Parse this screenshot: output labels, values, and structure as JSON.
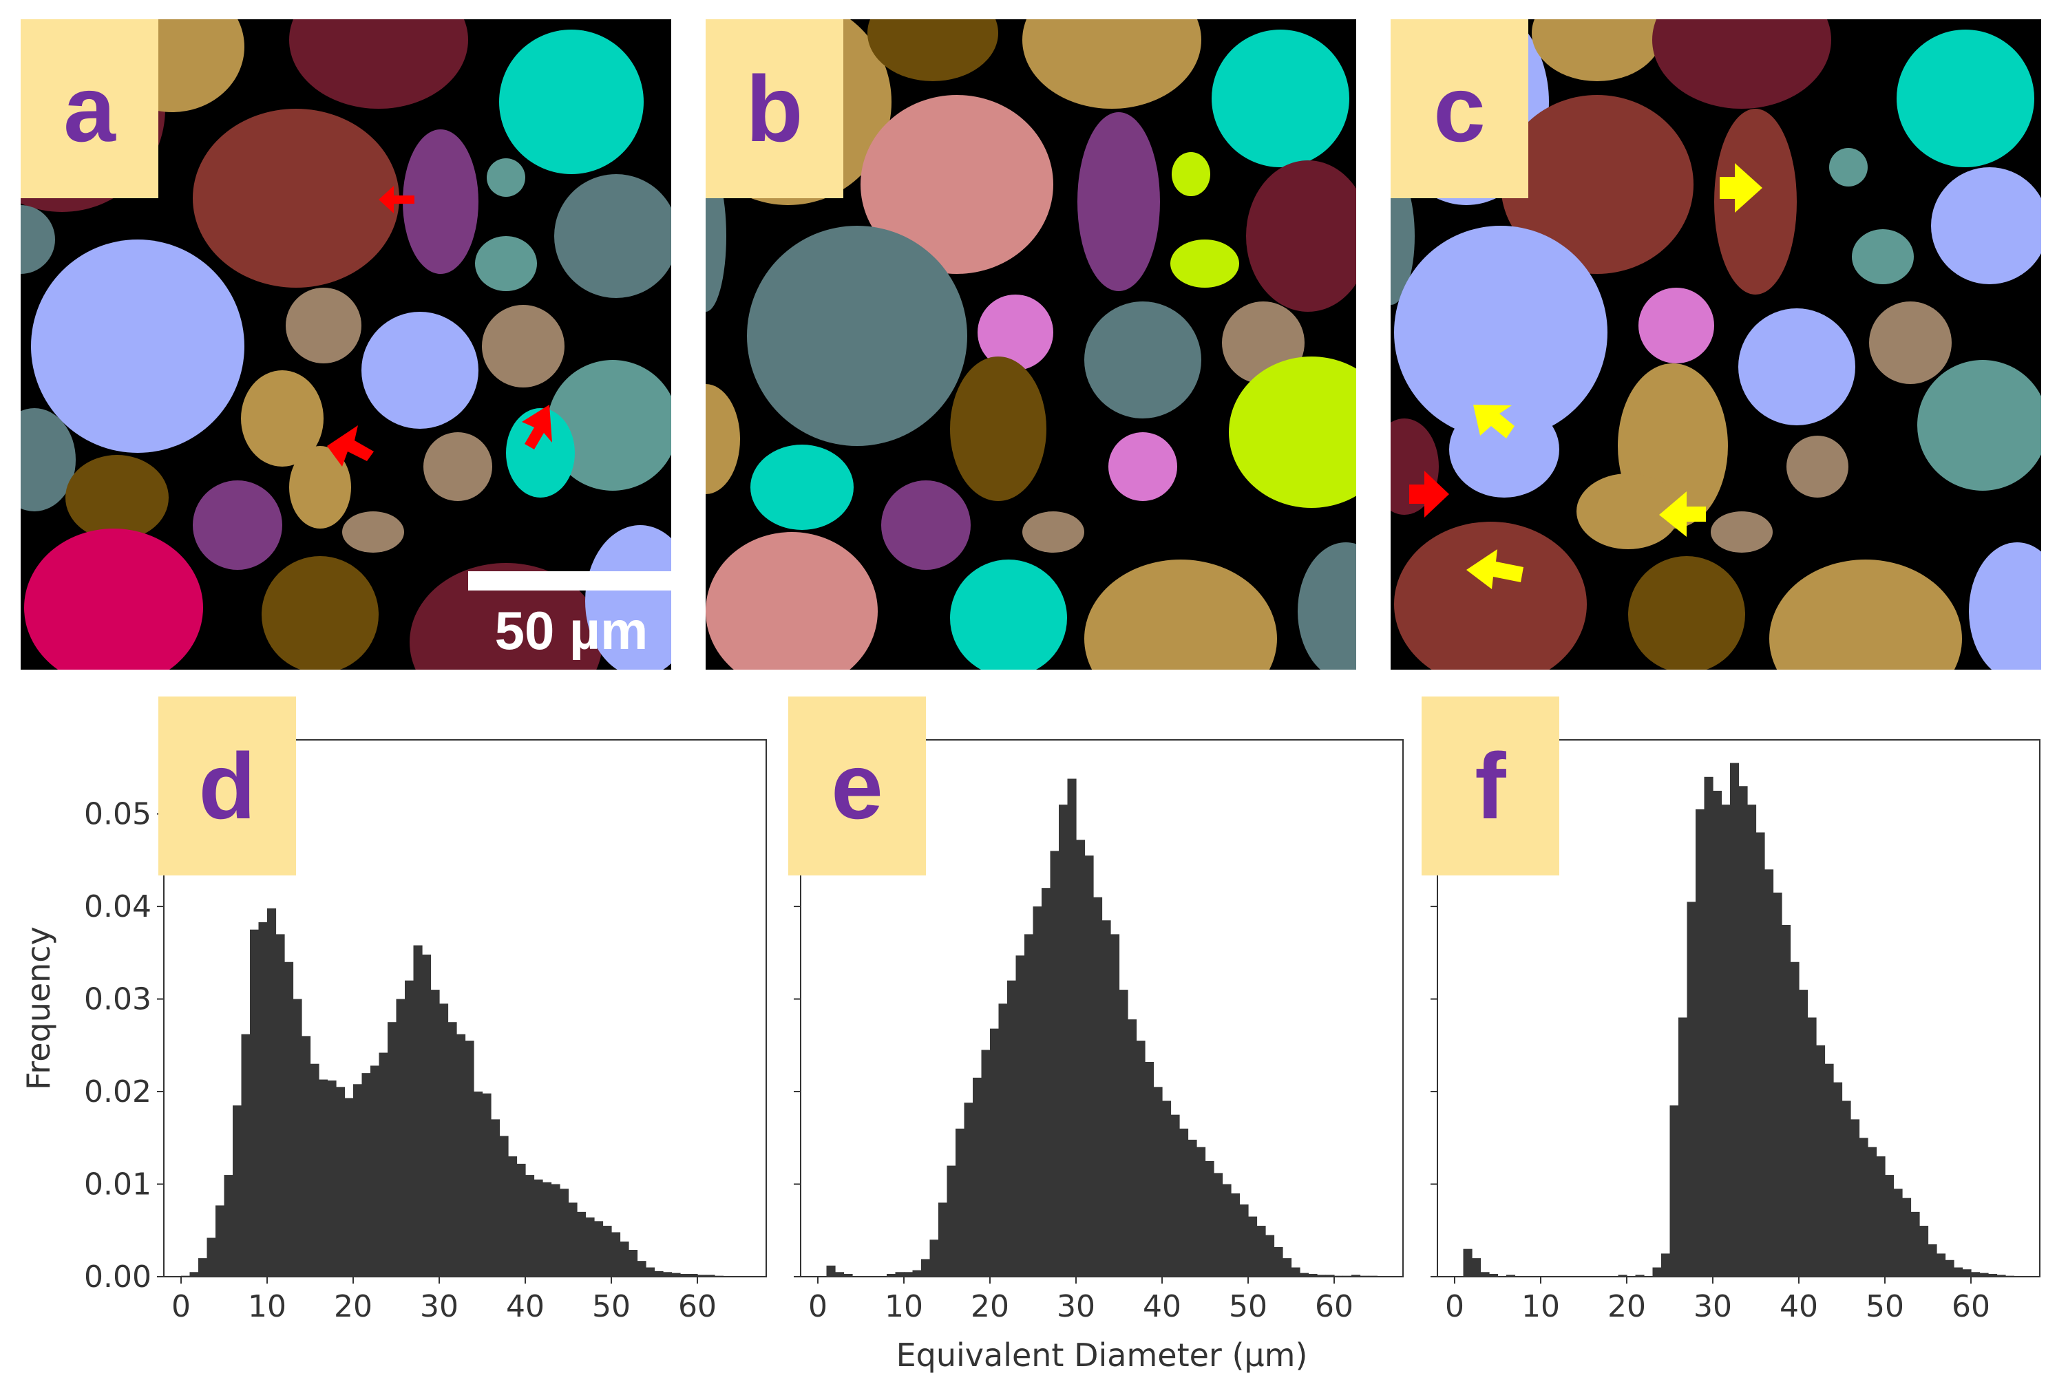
{
  "panels": {
    "a": {
      "label": "a"
    },
    "b": {
      "label": "b"
    },
    "c": {
      "label": "c"
    },
    "d": {
      "label": "d"
    },
    "e": {
      "label": "e"
    },
    "f": {
      "label": "f"
    }
  },
  "scalebar": {
    "label": "50 µm"
  },
  "colors": {
    "bar": "#363636",
    "label_box": "#fde49a",
    "label_text": "#7030a0",
    "arrow_red": "#ff0000",
    "arrow_yellow": "#ffff00"
  },
  "chart_data": [
    {
      "panel": "d",
      "type": "bar",
      "ylabel": "Frequency",
      "xlabel": "",
      "xlim": [
        -2,
        68
      ],
      "ylim": [
        0,
        0.058
      ],
      "xticks": [
        "0",
        "10",
        "20",
        "30",
        "40",
        "50",
        "60"
      ],
      "yticks": [
        "0.00",
        "0.01",
        "0.02",
        "0.03",
        "0.04",
        "0.05"
      ],
      "bin_start": 0,
      "bin_width": 1,
      "values": [
        0.0001,
        0.0005,
        0.002,
        0.0042,
        0.0077,
        0.011,
        0.0185,
        0.0262,
        0.0375,
        0.0383,
        0.0398,
        0.037,
        0.034,
        0.03,
        0.026,
        0.023,
        0.0213,
        0.0212,
        0.0205,
        0.0193,
        0.0208,
        0.022,
        0.0228,
        0.0242,
        0.0275,
        0.03,
        0.032,
        0.0358,
        0.0348,
        0.031,
        0.0295,
        0.0275,
        0.0262,
        0.0255,
        0.02,
        0.0198,
        0.017,
        0.0152,
        0.013,
        0.0122,
        0.011,
        0.0105,
        0.0102,
        0.01,
        0.0095,
        0.008,
        0.007,
        0.0064,
        0.006,
        0.0055,
        0.0048,
        0.0038,
        0.0029,
        0.0017,
        0.001,
        0.0006,
        0.0005,
        0.0004,
        0.0003,
        0.0003,
        0.0002,
        0.0002,
        0.0001,
        0.0,
        0.0,
        0.0
      ]
    },
    {
      "panel": "e",
      "type": "bar",
      "ylabel": "",
      "xlabel": "Equivalent Diameter (µm)",
      "xlim": [
        -2,
        68
      ],
      "ylim": [
        0,
        0.058
      ],
      "xticks": [
        "0",
        "10",
        "20",
        "30",
        "40",
        "50",
        "60"
      ],
      "yticks": [],
      "bin_start": 0,
      "bin_width": 1,
      "values": [
        0.0,
        0.0012,
        0.0005,
        0.0003,
        0.0,
        0.0,
        0.0,
        0.0,
        0.0003,
        0.0005,
        0.0005,
        0.0007,
        0.0019,
        0.004,
        0.008,
        0.012,
        0.016,
        0.0188,
        0.0215,
        0.0245,
        0.0268,
        0.0295,
        0.032,
        0.0347,
        0.037,
        0.04,
        0.042,
        0.046,
        0.051,
        0.0538,
        0.0472,
        0.0455,
        0.041,
        0.0385,
        0.037,
        0.031,
        0.0278,
        0.0255,
        0.0232,
        0.0205,
        0.019,
        0.0175,
        0.016,
        0.0148,
        0.014,
        0.0125,
        0.0112,
        0.01,
        0.009,
        0.0078,
        0.0065,
        0.0055,
        0.0045,
        0.0032,
        0.002,
        0.001,
        0.0004,
        0.0003,
        0.0002,
        0.0002,
        0.0001,
        0.0001,
        0.0002,
        0.0001,
        0.0001,
        0.0
      ]
    },
    {
      "panel": "f",
      "type": "bar",
      "ylabel": "",
      "xlabel": "",
      "xlim": [
        -2,
        68
      ],
      "ylim": [
        0,
        0.058
      ],
      "xticks": [
        "0",
        "10",
        "20",
        "30",
        "40",
        "50",
        "60"
      ],
      "yticks": [],
      "bin_start": 0,
      "bin_width": 1,
      "values": [
        0.0,
        0.003,
        0.002,
        0.0005,
        0.0003,
        0.0,
        0.0002,
        0.0,
        0.0,
        0.0,
        0.0,
        0.0,
        0.0,
        0.0,
        0.0,
        0.0,
        0.0,
        0.0,
        0.0,
        0.0002,
        0.0,
        0.0002,
        0.0,
        0.001,
        0.0025,
        0.0185,
        0.028,
        0.0405,
        0.0505,
        0.054,
        0.0525,
        0.051,
        0.0555,
        0.053,
        0.051,
        0.048,
        0.044,
        0.0415,
        0.038,
        0.034,
        0.031,
        0.028,
        0.025,
        0.023,
        0.021,
        0.019,
        0.017,
        0.015,
        0.014,
        0.013,
        0.011,
        0.0095,
        0.0085,
        0.007,
        0.0055,
        0.0035,
        0.0025,
        0.0018,
        0.001,
        0.0008,
        0.0005,
        0.0004,
        0.0003,
        0.0002,
        0.0001,
        0.0
      ]
    }
  ]
}
